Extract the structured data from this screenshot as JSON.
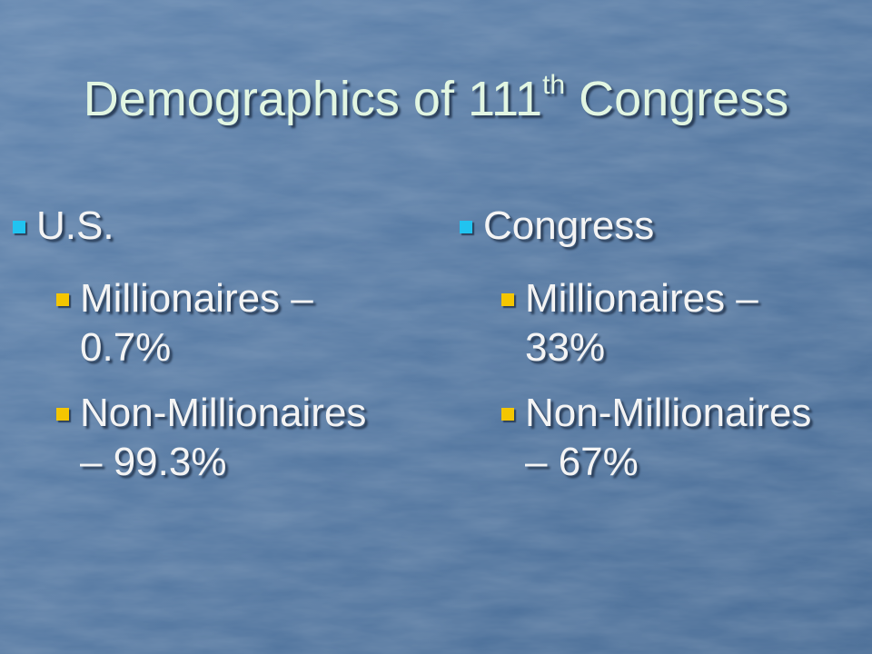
{
  "title": {
    "text": "Demographics of 111",
    "superscript": "th",
    "suffix": " Congress"
  },
  "columns": [
    {
      "heading": "U.S.",
      "items": [
        {
          "lines": [
            "Millionaires –",
            "0.7%"
          ]
        },
        {
          "lines": [
            "Non-Millionaires",
            "– 99.3%"
          ]
        }
      ]
    },
    {
      "heading": "Congress",
      "items": [
        {
          "lines": [
            "Millionaires –",
            "33%"
          ]
        },
        {
          "lines": [
            "Non-Millionaires",
            "– 67%"
          ]
        }
      ]
    }
  ]
}
